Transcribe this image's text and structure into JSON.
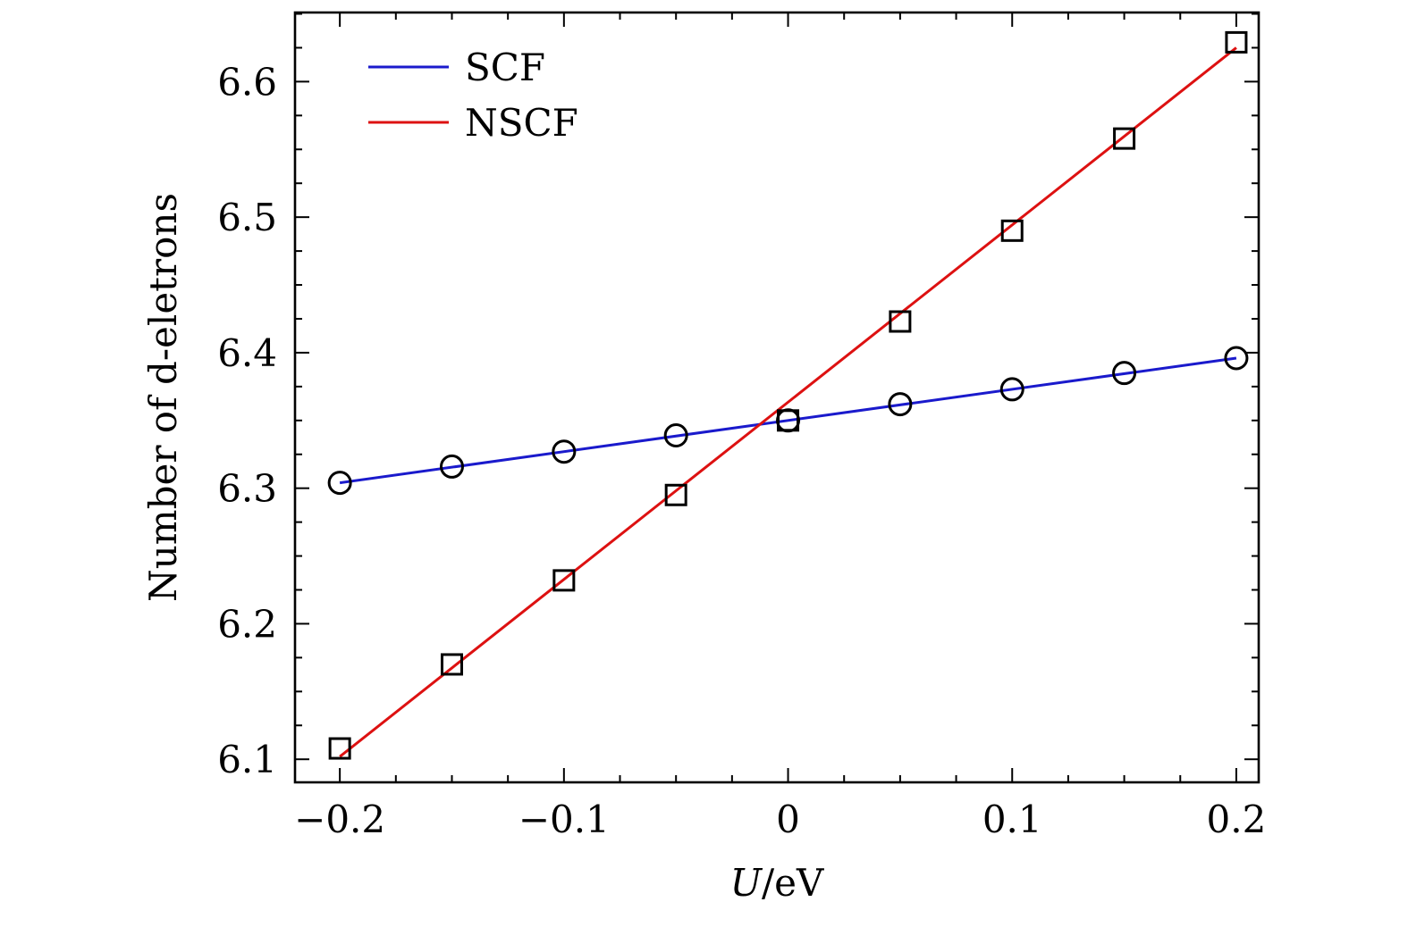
{
  "chart_data": {
    "type": "line",
    "xlabel_italic": "U",
    "xlabel_rest": "/eV",
    "ylabel": "Number of d-eletrons",
    "xlim": [
      -0.22,
      0.21
    ],
    "ylim": [
      6.083,
      6.651
    ],
    "x_ticks": [
      {
        "value": -0.2,
        "label": "−0.2"
      },
      {
        "value": -0.1,
        "label": "−0.1"
      },
      {
        "value": 0,
        "label": "0"
      },
      {
        "value": 0.1,
        "label": "0.1"
      },
      {
        "value": 0.2,
        "label": "0.2"
      }
    ],
    "y_ticks": [
      {
        "value": 6.1,
        "label": "6.1"
      },
      {
        "value": 6.2,
        "label": "6.2"
      },
      {
        "value": 6.3,
        "label": "6.3"
      },
      {
        "value": 6.4,
        "label": "6.4"
      },
      {
        "value": 6.5,
        "label": "6.5"
      },
      {
        "value": 6.6,
        "label": "6.6"
      }
    ],
    "x": [
      -0.2,
      -0.15,
      -0.1,
      -0.05,
      0,
      0.05,
      0.1,
      0.15,
      0.2
    ],
    "legend_position": "top-left",
    "series": [
      {
        "name": "SCF",
        "color": "#1a1acc",
        "marker": "circle",
        "values": [
          6.304,
          6.316,
          6.327,
          6.339,
          6.35,
          6.362,
          6.373,
          6.385,
          6.396
        ],
        "fit_line": [
          [
            -0.2,
            6.304
          ],
          [
            0.2,
            6.396
          ]
        ]
      },
      {
        "name": "NSCF",
        "color": "#dd1111",
        "marker": "square",
        "values": [
          6.108,
          6.17,
          6.232,
          6.295,
          6.35,
          6.423,
          6.49,
          6.558,
          6.629
        ],
        "fit_line": [
          [
            -0.2,
            6.102
          ],
          [
            0.2,
            6.625
          ]
        ]
      }
    ]
  }
}
